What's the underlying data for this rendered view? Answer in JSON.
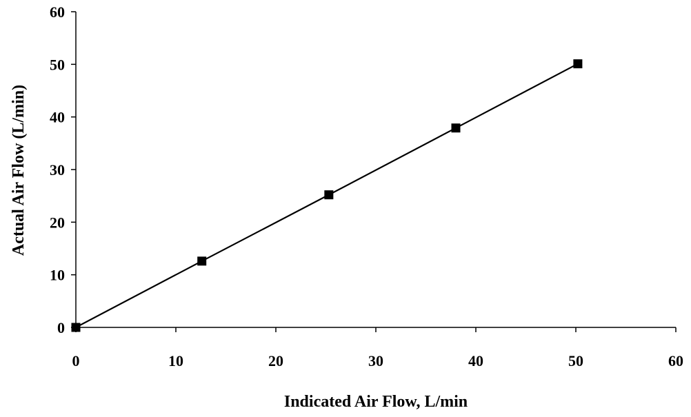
{
  "chart_data": {
    "type": "line",
    "title": "",
    "xlabel": "Indicated Air Flow, L/min",
    "ylabel": "Actual Air Flow (L/min)",
    "xlim": [
      0,
      60
    ],
    "ylim": [
      0,
      60
    ],
    "x_ticks": [
      0,
      10,
      20,
      30,
      40,
      50,
      60
    ],
    "y_ticks": [
      0,
      10,
      20,
      30,
      40,
      50,
      60
    ],
    "x_tick_labels": [
      "0",
      "10",
      "20",
      "30",
      "40",
      "50",
      "60"
    ],
    "y_tick_labels": [
      "0",
      "10",
      "20",
      "30",
      "40",
      "50",
      "60"
    ],
    "grid": false,
    "legend": "none",
    "series": [
      {
        "marker": "square",
        "color": "#000000",
        "points": [
          {
            "x": 0,
            "y": 0
          },
          {
            "x": 12.6,
            "y": 12.6
          },
          {
            "x": 25.3,
            "y": 25.2
          },
          {
            "x": 38.0,
            "y": 37.9
          },
          {
            "x": 50.2,
            "y": 50.1
          }
        ]
      }
    ]
  }
}
